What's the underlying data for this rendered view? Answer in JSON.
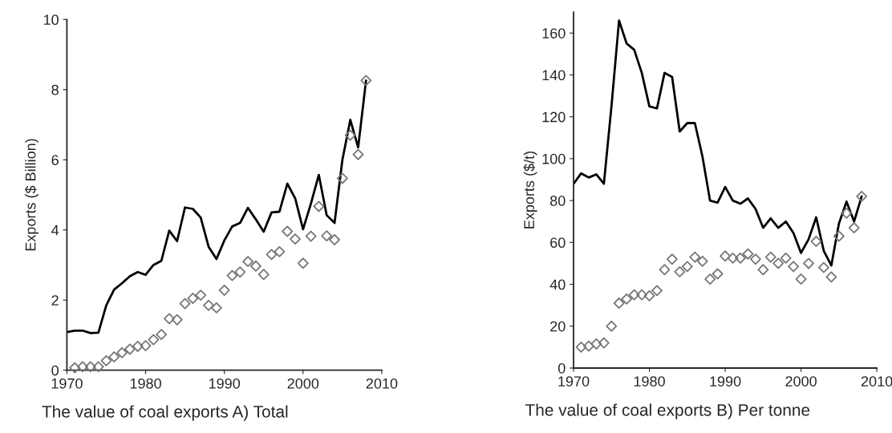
{
  "chart_data": [
    {
      "type": "line",
      "ylabel": "Exports ($ Billion)",
      "xlim": [
        1970,
        2010
      ],
      "xticks": [
        1970,
        1980,
        1990,
        2000,
        2010
      ],
      "ylim": [
        0,
        10
      ],
      "yticks": [
        0,
        2,
        4,
        6,
        8,
        10
      ],
      "grid": false,
      "legend": false,
      "annotations": [
        "The value of coal exports A) Total"
      ],
      "series": [
        {
          "color": "#000000",
          "marker": "none",
          "line_style": "solid",
          "x": [
            1970,
            1971,
            1972,
            1973,
            1974,
            1975,
            1976,
            1977,
            1978,
            1979,
            1980,
            1981,
            1982,
            1983,
            1984,
            1985,
            1986,
            1987,
            1988,
            1989,
            1990,
            1991,
            1992,
            1993,
            1994,
            1995,
            1996,
            1997,
            1998,
            1999,
            2000,
            2001,
            2002,
            2003,
            2004,
            2005,
            2006,
            2007,
            2008
          ],
          "values": [
            1.09,
            1.13,
            1.13,
            1.06,
            1.07,
            1.85,
            2.3,
            2.48,
            2.68,
            2.8,
            2.72,
            3.0,
            3.12,
            3.98,
            3.68,
            4.64,
            4.6,
            4.35,
            3.52,
            3.17,
            3.7,
            4.1,
            4.2,
            4.63,
            4.3,
            3.95,
            4.5,
            4.52,
            5.32,
            4.9,
            4.02,
            4.75,
            5.57,
            4.42,
            4.2,
            6.0,
            7.14,
            6.35,
            8.26
          ]
        },
        {
          "type": "scatter",
          "color": "#777777",
          "marker": "diamond",
          "x": [
            1971,
            1972,
            1973,
            1974,
            1975,
            1976,
            1977,
            1978,
            1979,
            1980,
            1981,
            1982,
            1983,
            1984,
            1985,
            1986,
            1987,
            1988,
            1989,
            1990,
            1991,
            1992,
            1993,
            1994,
            1995,
            1996,
            1997,
            1998,
            1999,
            2000,
            2001,
            2002,
            2003,
            2004,
            2005,
            2006,
            2007,
            2008
          ],
          "values": [
            0.07,
            0.1,
            0.1,
            0.1,
            0.27,
            0.38,
            0.5,
            0.6,
            0.68,
            0.7,
            0.87,
            1.02,
            1.47,
            1.44,
            1.9,
            2.05,
            2.14,
            1.85,
            1.78,
            2.28,
            2.7,
            2.8,
            3.1,
            2.97,
            2.73,
            3.3,
            3.38,
            3.96,
            3.74,
            3.05,
            3.82,
            4.67,
            3.83,
            3.72,
            5.47,
            6.7,
            6.15,
            8.26
          ]
        }
      ]
    },
    {
      "type": "line",
      "ylabel": "Exports ($/t)",
      "xlim": [
        1970,
        2010
      ],
      "xticks": [
        1970,
        1980,
        1990,
        2000,
        2010
      ],
      "ylim": [
        0,
        170
      ],
      "yticks": [
        0,
        20,
        40,
        60,
        80,
        100,
        120,
        140,
        160
      ],
      "grid": false,
      "legend": false,
      "annotations": [
        "The value of coal exports B) Per tonne"
      ],
      "series": [
        {
          "color": "#000000",
          "marker": "none",
          "line_style": "solid",
          "x": [
            1970,
            1971,
            1972,
            1973,
            1974,
            1975,
            1976,
            1977,
            1978,
            1979,
            1980,
            1981,
            1982,
            1983,
            1984,
            1985,
            1986,
            1987,
            1988,
            1989,
            1990,
            1991,
            1992,
            1993,
            1994,
            1995,
            1996,
            1997,
            1998,
            1999,
            2000,
            2001,
            2002,
            2003,
            2004,
            2005,
            2006,
            2007,
            2008
          ],
          "values": [
            88,
            93,
            91,
            92.5,
            88,
            125,
            166,
            155,
            152,
            141,
            125,
            124,
            141,
            139,
            113,
            117,
            117,
            101,
            80,
            79,
            86.5,
            80,
            78.5,
            81,
            76,
            67,
            71.5,
            67,
            70,
            64.5,
            55,
            61.5,
            72,
            56,
            49,
            69,
            79.5,
            70,
            82
          ]
        },
        {
          "type": "scatter",
          "color": "#777777",
          "marker": "diamond",
          "x": [
            1971,
            1972,
            1973,
            1974,
            1975,
            1976,
            1977,
            1978,
            1979,
            1980,
            1981,
            1982,
            1983,
            1984,
            1985,
            1986,
            1987,
            1988,
            1989,
            1990,
            1991,
            1992,
            1993,
            1994,
            1995,
            1996,
            1997,
            1998,
            1999,
            2000,
            2001,
            2002,
            2003,
            2004,
            2005,
            2006,
            2007,
            2008
          ],
          "values": [
            10,
            10.5,
            11.5,
            12,
            20,
            31,
            33,
            35,
            35,
            34.5,
            37,
            47,
            52,
            46,
            48.5,
            53,
            51,
            42.5,
            45,
            53.5,
            52.5,
            52.5,
            54.5,
            52,
            47,
            53,
            50,
            52.5,
            48.5,
            42.5,
            50,
            60.5,
            48,
            43.5,
            63,
            74,
            67,
            82
          ]
        }
      ]
    }
  ]
}
